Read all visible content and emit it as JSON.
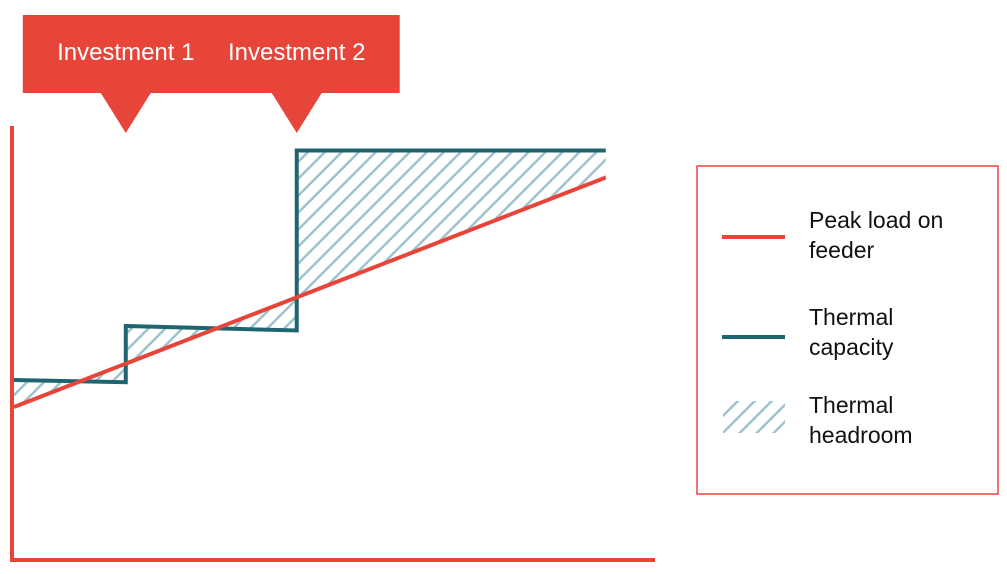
{
  "chart_data": {
    "type": "line",
    "x_ticks": [
      2010,
      2020,
      2030,
      2040,
      2050
    ],
    "xlim": [
      2010,
      2055
    ],
    "series": [
      {
        "name": "Peak load on\nfeeder",
        "kind": "line",
        "color": "#e8453a",
        "points": [
          [
            2010,
            34
          ],
          [
            2055,
            85
          ]
        ]
      },
      {
        "name": "Thermal\ncapacity",
        "kind": "step",
        "color": "#1f6471",
        "points": [
          [
            2010,
            40
          ],
          [
            2018.5,
            39.5
          ],
          [
            2018.5,
            52
          ],
          [
            2031.5,
            51
          ],
          [
            2031.5,
            91
          ],
          [
            2055,
            91
          ]
        ]
      },
      {
        "name": "Thermal\nheadroom",
        "kind": "hatched-area",
        "color": "#9ec3cc"
      }
    ],
    "annotations": [
      {
        "label": "Investment 1",
        "x": 2018.5
      },
      {
        "label": "Investment 2",
        "x": 2031.5
      }
    ],
    "axis_color": "#e8453a",
    "legend_placement": "right",
    "grid": false
  }
}
